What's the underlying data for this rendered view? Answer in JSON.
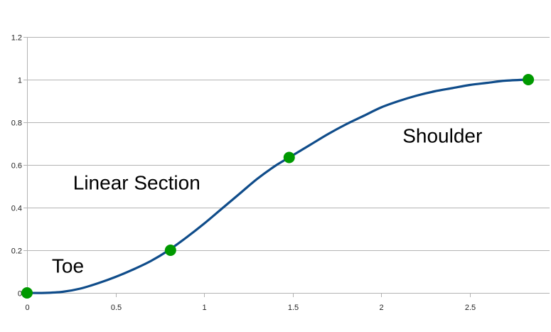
{
  "chart_data": {
    "type": "line",
    "title": "",
    "xlabel": "",
    "ylabel": "",
    "xlim": [
      0,
      2.95
    ],
    "ylim": [
      0,
      1.2
    ],
    "x_ticks": [
      0,
      0.5,
      1,
      1.5,
      2,
      2.5
    ],
    "x_tick_labels": [
      "0",
      "0.5",
      "1",
      "1.5",
      "2",
      "2.5"
    ],
    "y_ticks": [
      0,
      0.2,
      0.4,
      0.6,
      0.8,
      1,
      1.2
    ],
    "y_tick_labels": [
      "0",
      "0.2",
      "0.4",
      "0.6",
      "0.8",
      "1",
      "1.2"
    ],
    "grid": "horizontal",
    "legend": "none",
    "series": [
      {
        "color": "#0f4c8a",
        "x": [
          0,
          0.1,
          0.2,
          0.3,
          0.4,
          0.5,
          0.6,
          0.7,
          0.8,
          0.9,
          1.0,
          1.1,
          1.2,
          1.3,
          1.4,
          1.48,
          1.6,
          1.7,
          1.8,
          1.9,
          2.0,
          2.1,
          2.2,
          2.3,
          2.4,
          2.5,
          2.6,
          2.7,
          2.83
        ],
        "y": [
          0,
          0.0,
          0.005,
          0.02,
          0.045,
          0.075,
          0.11,
          0.15,
          0.2,
          0.26,
          0.325,
          0.395,
          0.465,
          0.535,
          0.595,
          0.635,
          0.695,
          0.745,
          0.79,
          0.83,
          0.87,
          0.9,
          0.925,
          0.945,
          0.96,
          0.975,
          0.985,
          0.995,
          1.0
        ]
      }
    ],
    "markers": {
      "color": "#009900",
      "x": [
        0,
        0.81,
        1.48,
        2.83
      ],
      "y": [
        0,
        0.2,
        0.635,
        1.0
      ]
    },
    "annotations": [
      {
        "text": "Toe",
        "x": 0.14,
        "y": 0.095
      },
      {
        "text": "Linear Section",
        "x": 0.26,
        "y": 0.485
      },
      {
        "text": "Shoulder",
        "x": 2.12,
        "y": 0.705
      }
    ]
  }
}
